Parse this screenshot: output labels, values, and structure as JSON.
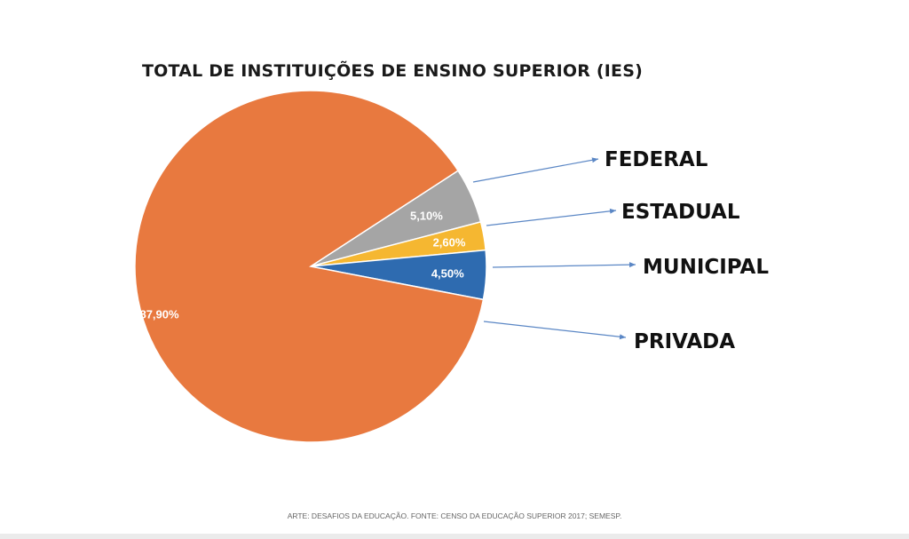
{
  "chart_data": {
    "type": "pie",
    "title": "TOTAL DE INSTITUIÇÕES DE ENSINO SUPERIOR (IES)",
    "slices": [
      {
        "name": "FEDERAL",
        "value": 5.1,
        "label": "5,10%",
        "color": "#a5a5a5"
      },
      {
        "name": "ESTADUAL",
        "value": 2.6,
        "label": "2,60%",
        "color": "#f5b731"
      },
      {
        "name": "MUNICIPAL",
        "value": 4.5,
        "label": "4,50%",
        "color": "#2e6bb0"
      },
      {
        "name": "PRIVADA",
        "value": 87.9,
        "label": "87,90%",
        "color": "#e8793f"
      }
    ],
    "legend": "right, with arrows",
    "arrow_color": "#5b87c5"
  },
  "source": "ARTE: DESAFIOS DA EDUCAÇÃO. FONTE: CENSO DA EDUCAÇÃO SUPERIOR 2017; SEMESP."
}
